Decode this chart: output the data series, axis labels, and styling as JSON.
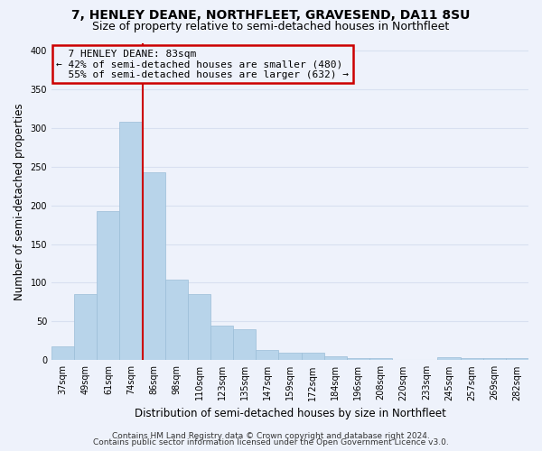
{
  "title": "7, HENLEY DEANE, NORTHFLEET, GRAVESEND, DA11 8SU",
  "subtitle": "Size of property relative to semi-detached houses in Northfleet",
  "xlabel": "Distribution of semi-detached houses by size in Northfleet",
  "ylabel": "Number of semi-detached properties",
  "categories": [
    "37sqm",
    "49sqm",
    "61sqm",
    "74sqm",
    "86sqm",
    "98sqm",
    "110sqm",
    "123sqm",
    "135sqm",
    "147sqm",
    "159sqm",
    "172sqm",
    "184sqm",
    "196sqm",
    "208sqm",
    "220sqm",
    "233sqm",
    "245sqm",
    "257sqm",
    "269sqm",
    "282sqm"
  ],
  "values": [
    18,
    85,
    193,
    308,
    243,
    104,
    85,
    45,
    40,
    13,
    10,
    10,
    5,
    3,
    3,
    0,
    0,
    4,
    3,
    3,
    3
  ],
  "bar_color": "#b8d4ea",
  "bar_edge_color": "#9bbdd8",
  "marker_index": 3,
  "annotation_label": "7 HENLEY DEANE: 83sqm",
  "pct_smaller": 42,
  "count_smaller": 480,
  "pct_larger": 55,
  "count_larger": 632,
  "vline_color": "#cc0000",
  "annotation_box_edge_color": "#cc0000",
  "ylim": [
    0,
    410
  ],
  "yticks": [
    0,
    50,
    100,
    150,
    200,
    250,
    300,
    350,
    400
  ],
  "footer_line1": "Contains HM Land Registry data © Crown copyright and database right 2024.",
  "footer_line2": "Contains public sector information licensed under the Open Government Licence v3.0.",
  "bg_color": "#eef2fb",
  "grid_color": "#d8e0f0",
  "title_fontsize": 10,
  "subtitle_fontsize": 9,
  "axis_label_fontsize": 8.5,
  "tick_fontsize": 7,
  "annotation_fontsize": 8,
  "footer_fontsize": 6.5
}
